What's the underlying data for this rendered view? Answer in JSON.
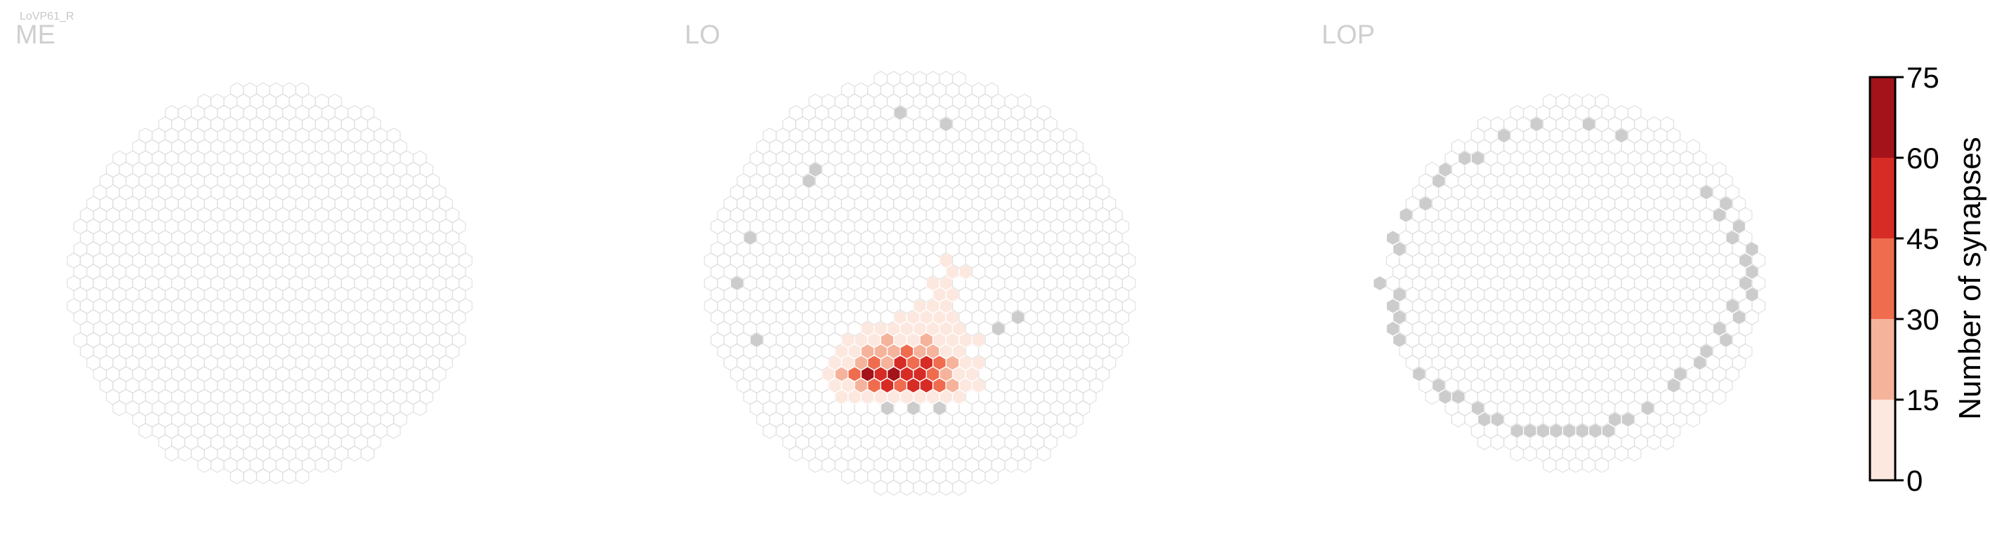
{
  "figure": {
    "cell_type_label": "LoVP61_R"
  },
  "chart_data": {
    "type": "heatmap",
    "title": "LoVP61_R",
    "panels": [
      {
        "name": "ME",
        "hex_radius": 15,
        "active_cells": [],
        "gray_cells": []
      },
      {
        "name": "LO",
        "hex_radius": 16,
        "active_cells": [
          [
            -6,
            -10,
            2
          ],
          [
            -5,
            -10,
            2
          ],
          [
            -4,
            -10,
            3
          ],
          [
            -3,
            -10,
            2
          ],
          [
            -2,
            -10,
            3
          ],
          [
            -1,
            -10,
            5
          ],
          [
            0,
            -10,
            3
          ],
          [
            1,
            -10,
            2
          ],
          [
            2,
            -10,
            1
          ],
          [
            3,
            -10,
            3
          ],
          [
            -7,
            -9,
            2
          ],
          [
            -6,
            -9,
            8
          ],
          [
            -5,
            -9,
            18
          ],
          [
            -4,
            -9,
            35
          ],
          [
            -3,
            -9,
            52
          ],
          [
            -2,
            -9,
            40
          ],
          [
            -1,
            -9,
            56
          ],
          [
            0,
            -9,
            47
          ],
          [
            1,
            -9,
            33
          ],
          [
            2,
            -9,
            20
          ],
          [
            3,
            -9,
            8
          ],
          [
            4,
            -9,
            3
          ],
          [
            -7,
            -8,
            5
          ],
          [
            -6,
            -8,
            16
          ],
          [
            -5,
            -8,
            30
          ],
          [
            -4,
            -8,
            63
          ],
          [
            -3,
            -8,
            48
          ],
          [
            -2,
            -8,
            66
          ],
          [
            -1,
            -8,
            50
          ],
          [
            0,
            -8,
            59
          ],
          [
            1,
            -8,
            44
          ],
          [
            2,
            -8,
            27
          ],
          [
            3,
            -8,
            10
          ],
          [
            4,
            -8,
            4
          ],
          [
            -7,
            -7,
            3
          ],
          [
            -6,
            -7,
            12
          ],
          [
            -5,
            -7,
            22
          ],
          [
            -4,
            -7,
            38
          ],
          [
            -3,
            -7,
            29
          ],
          [
            -2,
            -7,
            49
          ],
          [
            -1,
            -7,
            42
          ],
          [
            0,
            -7,
            53
          ],
          [
            1,
            -7,
            36
          ],
          [
            2,
            -7,
            24
          ],
          [
            3,
            -7,
            9
          ],
          [
            4,
            -7,
            2
          ],
          [
            -6,
            -6,
            5
          ],
          [
            -5,
            -6,
            12
          ],
          [
            -4,
            -6,
            17
          ],
          [
            -3,
            -6,
            25
          ],
          [
            -2,
            -6,
            21
          ],
          [
            -1,
            -6,
            33
          ],
          [
            0,
            -6,
            28
          ],
          [
            1,
            -6,
            16
          ],
          [
            2,
            -6,
            12
          ],
          [
            3,
            -6,
            6
          ],
          [
            -6,
            -5,
            2
          ],
          [
            -5,
            -5,
            4
          ],
          [
            -4,
            -5,
            8
          ],
          [
            -3,
            -5,
            20
          ],
          [
            -2,
            -5,
            13
          ],
          [
            -1,
            -5,
            9
          ],
          [
            0,
            -5,
            18
          ],
          [
            1,
            -5,
            7
          ],
          [
            2,
            -5,
            4
          ],
          [
            3,
            -5,
            6
          ],
          [
            4,
            -5,
            3
          ],
          [
            -4,
            -4,
            3
          ],
          [
            -3,
            -4,
            6
          ],
          [
            -2,
            -4,
            5
          ],
          [
            -1,
            -4,
            4
          ],
          [
            0,
            -4,
            3
          ],
          [
            1,
            -4,
            5
          ],
          [
            2,
            -4,
            4
          ],
          [
            3,
            -4,
            3
          ],
          [
            -2,
            -3,
            2
          ],
          [
            -1,
            -3,
            2
          ],
          [
            0,
            -3,
            2
          ],
          [
            1,
            -3,
            3
          ],
          [
            2,
            -3,
            2
          ],
          [
            0,
            -2,
            2
          ],
          [
            1,
            -2,
            3
          ],
          [
            2,
            -2,
            2
          ],
          [
            1,
            -1,
            2
          ],
          [
            2,
            -1,
            3
          ],
          [
            1,
            0,
            2
          ],
          [
            2,
            0,
            2
          ],
          [
            2,
            1,
            2
          ],
          [
            3,
            1,
            2
          ],
          [
            2,
            2,
            1
          ]
        ],
        "gray_cells": [
          [
            -3,
            -11
          ],
          [
            -1,
            -11
          ],
          [
            1,
            -11
          ],
          [
            4,
            -9
          ],
          [
            6,
            -4
          ],
          [
            7,
            -3
          ],
          [
            -2,
            15
          ],
          [
            2,
            14
          ],
          [
            -9,
            9
          ],
          [
            -8,
            10
          ],
          [
            -13,
            4
          ],
          [
            -14,
            0
          ],
          [
            -13,
            -5
          ]
        ]
      },
      {
        "name": "LOP",
        "hex_radius": 14,
        "active_cells": [],
        "gray_cells": [
          [
            -6,
            13
          ],
          [
            -3,
            14
          ],
          [
            1,
            14
          ],
          [
            3,
            13
          ],
          [
            -11,
            9
          ],
          [
            -10,
            10
          ],
          [
            -9,
            11
          ],
          [
            -8,
            11
          ],
          [
            -12,
            7
          ],
          [
            -13,
            6
          ],
          [
            -14,
            4
          ],
          [
            -14,
            3
          ],
          [
            -15,
            0
          ],
          [
            -14,
            -1
          ],
          [
            -14,
            -2
          ],
          [
            -14,
            -3
          ],
          [
            -14,
            -4
          ],
          [
            -14,
            -5
          ],
          [
            -12,
            -8
          ],
          [
            -11,
            -9
          ],
          [
            -10,
            -10
          ],
          [
            -9,
            -10
          ],
          [
            -8,
            -11
          ],
          [
            -7,
            -12
          ],
          [
            -6,
            -12
          ],
          [
            -5,
            -13
          ],
          [
            -4,
            -13
          ],
          [
            -3,
            -13
          ],
          [
            -2,
            -13
          ],
          [
            -1,
            -13
          ],
          [
            0,
            -13
          ],
          [
            1,
            -13
          ],
          [
            2,
            -13
          ],
          [
            3,
            -12
          ],
          [
            4,
            -12
          ],
          [
            5,
            -11
          ],
          [
            7,
            -9
          ],
          [
            8,
            -8
          ],
          [
            9,
            -7
          ],
          [
            10,
            -6
          ],
          [
            11,
            -5
          ],
          [
            11,
            -4
          ],
          [
            12,
            -3
          ],
          [
            12,
            -2
          ],
          [
            13,
            -1
          ],
          [
            13,
            0
          ],
          [
            13,
            1
          ],
          [
            13,
            2
          ],
          [
            13,
            3
          ],
          [
            12,
            4
          ],
          [
            12,
            5
          ],
          [
            11,
            6
          ],
          [
            11,
            7
          ],
          [
            10,
            8
          ]
        ]
      }
    ],
    "colorbar": {
      "label": "Number of synapses",
      "ticks": [
        0,
        15,
        30,
        45,
        60,
        75
      ],
      "bins": [
        {
          "min": 0,
          "max": 15,
          "color": "#fce8df"
        },
        {
          "min": 15,
          "max": 30,
          "color": "#f6b39c"
        },
        {
          "min": 30,
          "max": 45,
          "color": "#ef6c4f"
        },
        {
          "min": 45,
          "max": 60,
          "color": "#d72b25"
        },
        {
          "min": 60,
          "max": 75,
          "color": "#a31319"
        }
      ]
    },
    "colors": {
      "empty_fill": "#ffffff",
      "empty_stroke": "#dedede",
      "gray_fill": "#cccccc",
      "active_stroke": "#ffffff"
    }
  }
}
